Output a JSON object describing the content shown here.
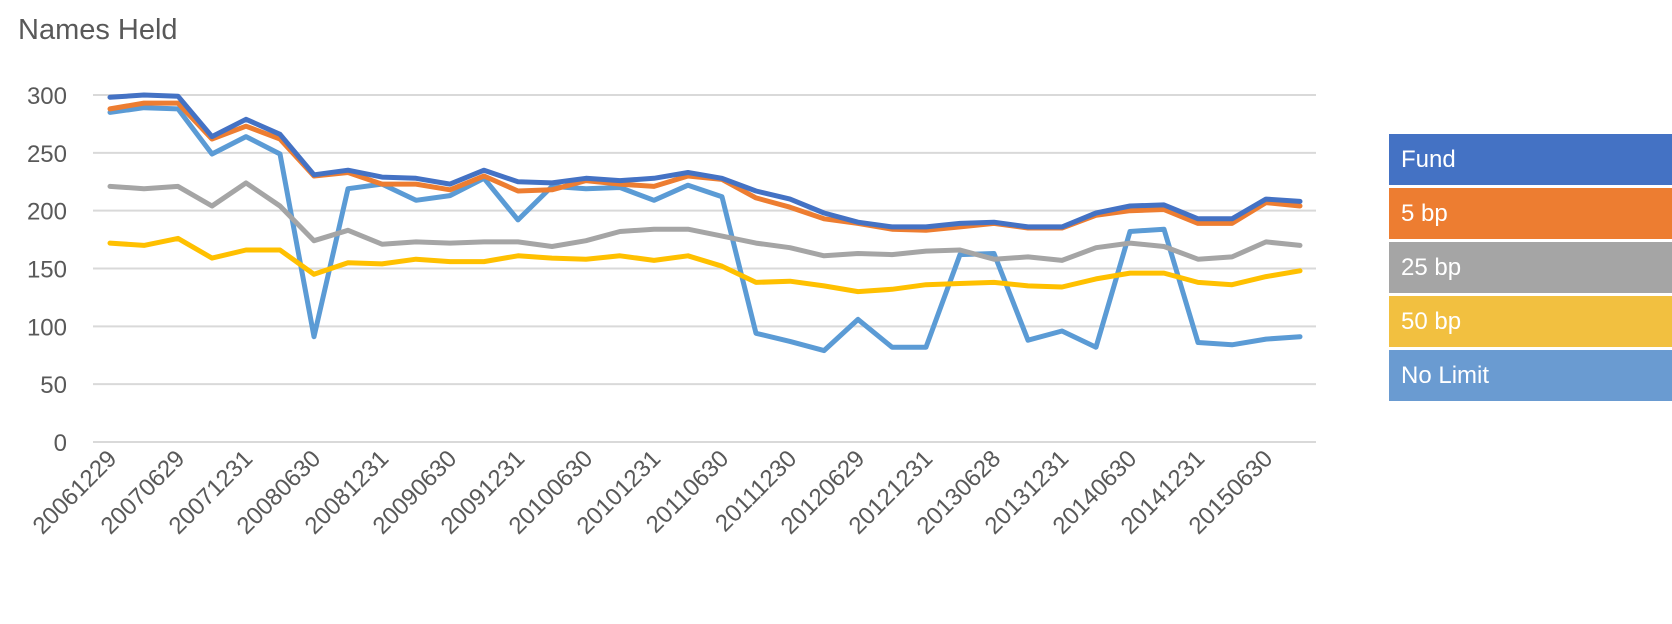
{
  "chart_data": {
    "type": "line",
    "title": "Names Held",
    "xlabel": "",
    "ylabel": "",
    "ylim": [
      0,
      300
    ],
    "yticks": [
      0,
      50,
      100,
      150,
      200,
      250,
      300
    ],
    "grid": true,
    "legend_position": "right",
    "x": [
      "20061229",
      "20070330",
      "20070629",
      "20070928",
      "20071231",
      "20080331",
      "20080630",
      "20080930",
      "20081231",
      "20090331",
      "20090630",
      "20090930",
      "20091231",
      "20100331",
      "20100630",
      "20100930",
      "20101231",
      "20110331",
      "20110630",
      "20110930",
      "20111230",
      "20120330",
      "20120629",
      "20120928",
      "20121231",
      "20130328",
      "20130628",
      "20130930",
      "20131231",
      "20140331",
      "20140630",
      "20140930",
      "20141231",
      "20150331",
      "20150630",
      "20150930"
    ],
    "x_ticks_shown": [
      "20061229",
      "20070629",
      "20071231",
      "20080630",
      "20081231",
      "20090630",
      "20091231",
      "20100630",
      "20101231",
      "20110630",
      "20111230",
      "20120629",
      "20121231",
      "20130628",
      "20131231",
      "20140630",
      "20141231",
      "20150630"
    ],
    "series": [
      {
        "name": "Fund",
        "color": "#4472C4",
        "values": [
          298,
          300,
          299,
          264,
          279,
          266,
          231,
          235,
          229,
          228,
          223,
          235,
          225,
          224,
          228,
          226,
          228,
          233,
          228,
          217,
          210,
          198,
          190,
          186,
          186,
          189,
          190,
          186,
          186,
          198,
          204,
          205,
          193,
          193,
          210,
          208
        ]
      },
      {
        "name": "5 bp",
        "color": "#ED7D31",
        "values": [
          288,
          293,
          293,
          262,
          273,
          262,
          230,
          233,
          223,
          223,
          218,
          230,
          217,
          218,
          226,
          223,
          221,
          230,
          227,
          211,
          203,
          193,
          189,
          184,
          183,
          186,
          189,
          185,
          185,
          196,
          200,
          201,
          189,
          189,
          207,
          204
        ]
      },
      {
        "name": "25 bp",
        "color": "#A5A5A5",
        "values": [
          221,
          219,
          221,
          204,
          224,
          204,
          174,
          183,
          171,
          173,
          172,
          173,
          173,
          169,
          174,
          182,
          184,
          184,
          178,
          172,
          168,
          161,
          163,
          162,
          165,
          166,
          158,
          160,
          157,
          168,
          172,
          169,
          158,
          160,
          173,
          170
        ]
      },
      {
        "name": "50 bp",
        "color": "#FFC000",
        "values": [
          172,
          170,
          176,
          159,
          166,
          166,
          145,
          155,
          154,
          158,
          156,
          156,
          161,
          159,
          158,
          161,
          157,
          161,
          152,
          138,
          139,
          135,
          130,
          132,
          136,
          137,
          138,
          135,
          134,
          141,
          146,
          146,
          138,
          136,
          143,
          148
        ]
      },
      {
        "name": "No Limit",
        "color": "#5B9BD5",
        "values": [
          285,
          289,
          288,
          249,
          264,
          249,
          91,
          219,
          223,
          209,
          213,
          228,
          192,
          221,
          219,
          220,
          209,
          222,
          212,
          94,
          87,
          79,
          106,
          82,
          82,
          162,
          163,
          88,
          96,
          82,
          182,
          184,
          86,
          84,
          89,
          91
        ]
      }
    ]
  },
  "legend": {
    "items": [
      {
        "label": "Fund",
        "color": "#4472C4"
      },
      {
        "label": "5 bp",
        "color": "#ED7D31"
      },
      {
        "label": "25 bp",
        "color": "#A5A5A5"
      },
      {
        "label": "50 bp",
        "color": "#F2C040"
      },
      {
        "label": "No Limit",
        "color": "#6A9BD1"
      }
    ]
  }
}
